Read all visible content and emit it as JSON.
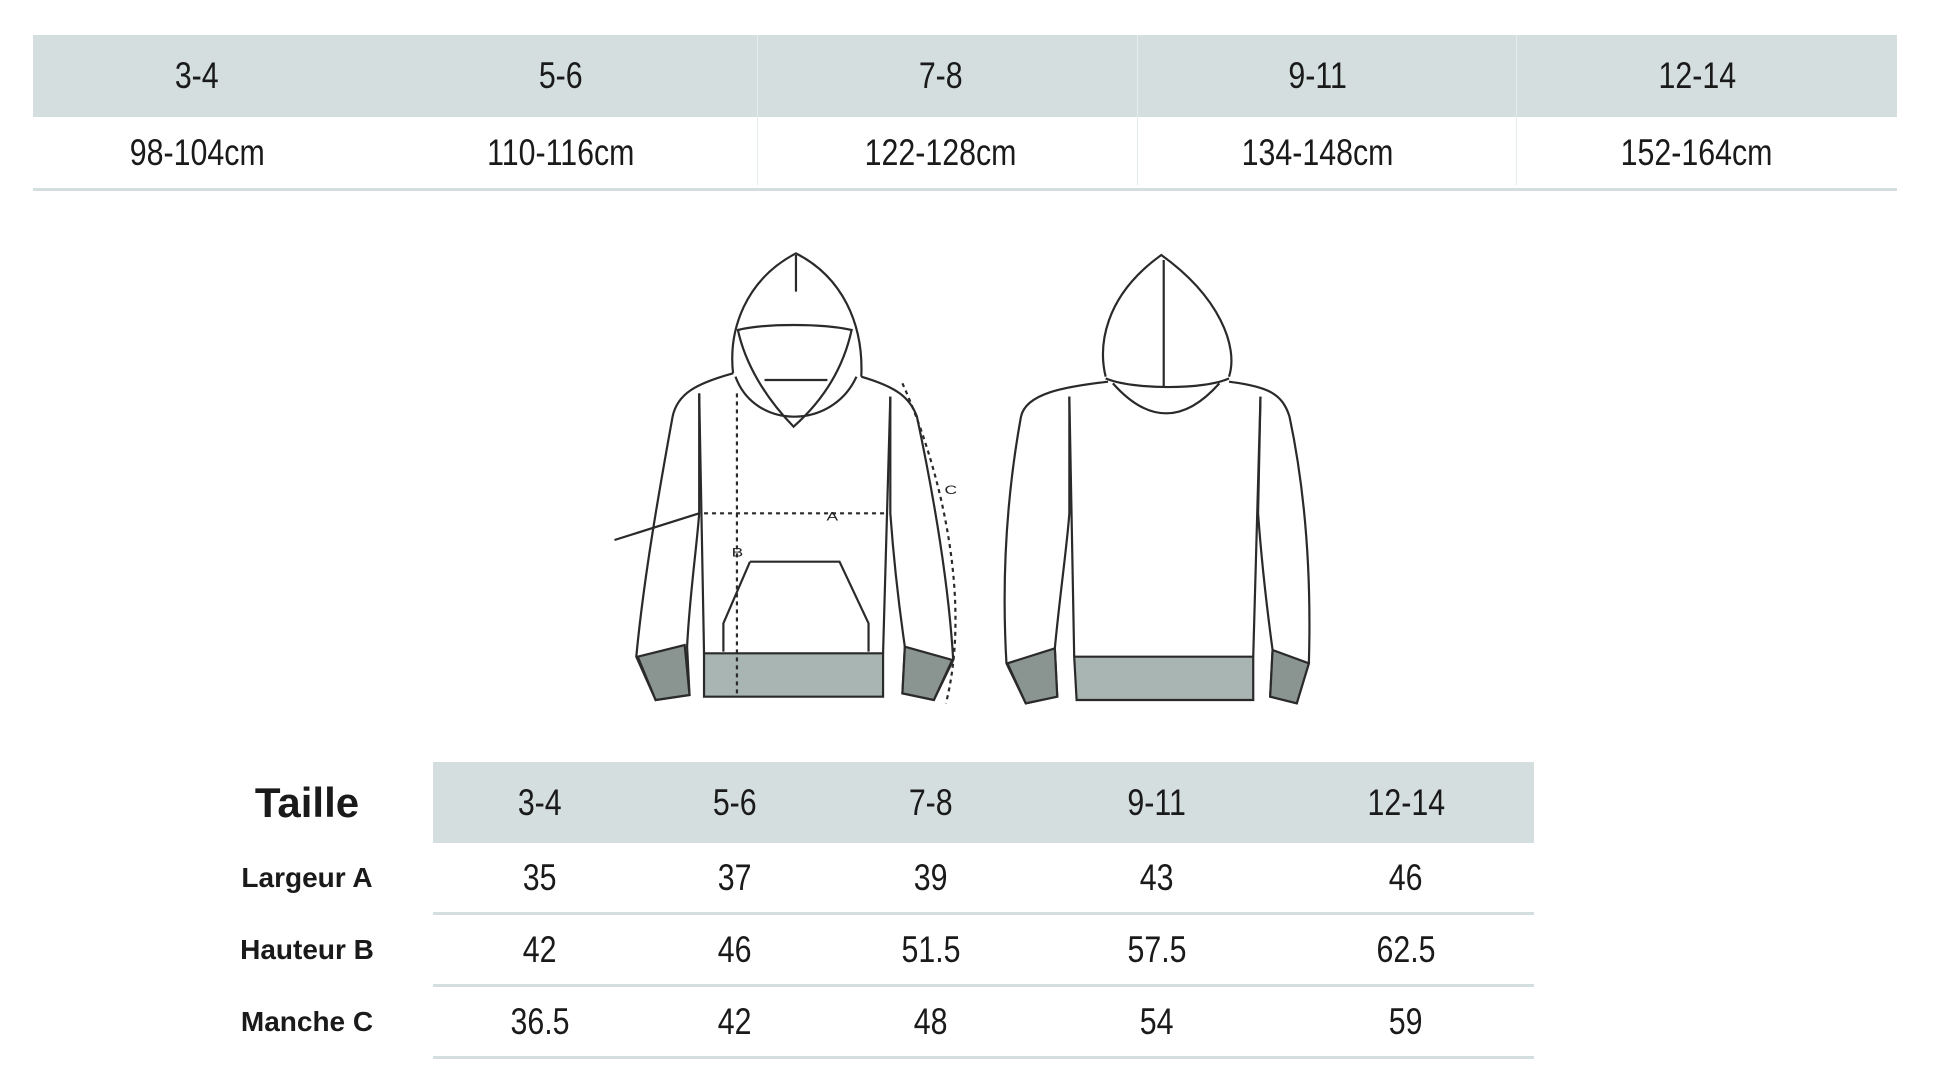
{
  "top_table": {
    "sizes": [
      "3-4",
      "5-6",
      "7-8",
      "9-11",
      "12-14"
    ],
    "heights": [
      "98-104cm",
      "110-116cm",
      "122-128cm",
      "134-148cm",
      "152-164cm"
    ]
  },
  "illustration": {
    "labels": {
      "a": "A",
      "b": "B",
      "c": "C"
    },
    "colors": {
      "rib": "#a8b5b2",
      "cuff": "#8a9491",
      "outline": "#2a2a2a"
    }
  },
  "measure_table": {
    "header_label": "Taille",
    "sizes": [
      "3-4",
      "5-6",
      "7-8",
      "9-11",
      "12-14"
    ],
    "rows": [
      {
        "label": "Largeur A",
        "values": [
          "35",
          "37",
          "39",
          "43",
          "46"
        ]
      },
      {
        "label": "Hauteur B",
        "values": [
          "42",
          "46",
          "51.5",
          "57.5",
          "62.5"
        ]
      },
      {
        "label": "Manche C",
        "values": [
          "36.5",
          "42",
          "48",
          "54",
          "59"
        ]
      }
    ]
  },
  "colors": {
    "header_bg": "#d4dede"
  }
}
